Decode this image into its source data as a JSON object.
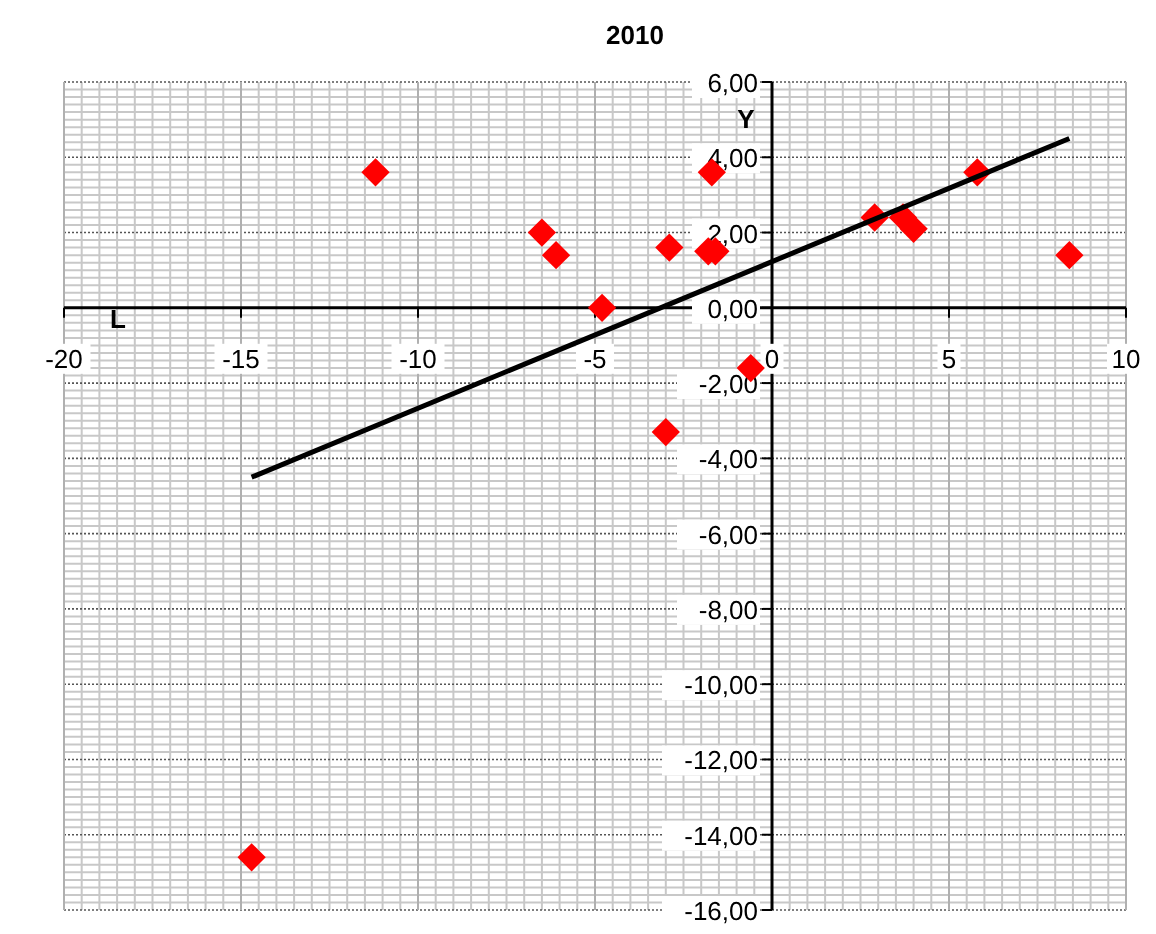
{
  "chart_data": {
    "type": "scatter",
    "title": "2010",
    "xlabel": "L",
    "ylabel": "Y",
    "xlim": [
      -20,
      10
    ],
    "xticks": [
      -20,
      -15,
      -10,
      -5,
      0,
      5,
      10
    ],
    "ylim": [
      -16,
      6
    ],
    "yticks": [
      {
        "value": -16,
        "label": "-16,00"
      },
      {
        "value": -14,
        "label": "-14,00"
      },
      {
        "value": -12,
        "label": "-12,00"
      },
      {
        "value": -10,
        "label": "-10,00"
      },
      {
        "value": -8,
        "label": "-8,00"
      },
      {
        "value": -6,
        "label": "-6,00"
      },
      {
        "value": -4,
        "label": "-4,00"
      },
      {
        "value": -2,
        "label": "-2,00"
      },
      {
        "value": 0,
        "label": "0,00"
      },
      {
        "value": 2,
        "label": "2,00"
      },
      {
        "value": 4,
        "label": "4,00"
      },
      {
        "value": 6,
        "label": "6,00"
      }
    ],
    "grid": true,
    "series": [
      {
        "type": "scatter",
        "color": "#ff0000",
        "marker": "diamond",
        "x": [
          -11.2,
          -6.5,
          -6.1,
          -4.8,
          -2.9,
          -1.7,
          -1.8,
          -1.6,
          2.9,
          3.7,
          4.0,
          5.8,
          8.4,
          -0.6,
          -3.0,
          -14.7
        ],
        "values": [
          3.6,
          2.0,
          1.4,
          0.0,
          1.6,
          3.6,
          1.5,
          1.5,
          2.4,
          2.4,
          2.1,
          3.6,
          1.4,
          -1.6,
          -3.3,
          -14.6
        ]
      },
      {
        "type": "line",
        "color": "#000000",
        "marker": "none",
        "line_style": "solid",
        "x": [
          -14.7,
          8.4
        ],
        "values": [
          -4.5,
          4.5
        ]
      }
    ]
  }
}
